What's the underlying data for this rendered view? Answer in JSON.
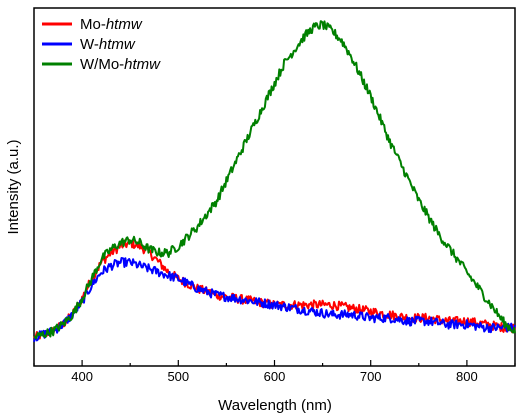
{
  "chart_data": {
    "type": "line",
    "xlabel": "Wavelength (nm)",
    "ylabel": "Intensity (a.u.)",
    "xlim": [
      350,
      850
    ],
    "ylim": [
      0,
      1.0
    ],
    "x_ticks": [
      400,
      500,
      600,
      700,
      800
    ],
    "y_ticks_shown": false,
    "grid": false,
    "legend_position": "top-left",
    "series": [
      {
        "name_prefix": "Mo-",
        "name_suffix": "htmw",
        "color": "#ff0000",
        "x": [
          350,
          360,
          370,
          380,
          390,
          400,
          410,
          420,
          430,
          440,
          450,
          460,
          470,
          480,
          490,
          500,
          520,
          540,
          560,
          580,
          600,
          620,
          640,
          660,
          680,
          700,
          720,
          740,
          760,
          780,
          800,
          820,
          840,
          850
        ],
        "y": [
          0.02,
          0.03,
          0.04,
          0.06,
          0.09,
          0.14,
          0.2,
          0.25,
          0.28,
          0.3,
          0.31,
          0.3,
          0.28,
          0.25,
          0.22,
          0.2,
          0.17,
          0.15,
          0.14,
          0.13,
          0.12,
          0.12,
          0.12,
          0.12,
          0.11,
          0.1,
          0.09,
          0.08,
          0.08,
          0.07,
          0.07,
          0.06,
          0.05,
          0.05
        ]
      },
      {
        "name_prefix": "W-",
        "name_suffix": "htmw",
        "color": "#0000ff",
        "x": [
          350,
          360,
          370,
          380,
          390,
          400,
          410,
          420,
          430,
          440,
          450,
          460,
          470,
          480,
          490,
          500,
          520,
          540,
          560,
          580,
          600,
          620,
          640,
          660,
          680,
          700,
          720,
          740,
          760,
          780,
          800,
          820,
          840,
          850
        ],
        "y": [
          0.02,
          0.03,
          0.04,
          0.06,
          0.09,
          0.13,
          0.18,
          0.22,
          0.24,
          0.25,
          0.25,
          0.24,
          0.23,
          0.22,
          0.21,
          0.2,
          0.17,
          0.15,
          0.14,
          0.13,
          0.12,
          0.11,
          0.1,
          0.09,
          0.09,
          0.08,
          0.08,
          0.07,
          0.07,
          0.06,
          0.06,
          0.05,
          0.05,
          0.05
        ]
      },
      {
        "name_prefix": "W/Mo-",
        "name_suffix": "htmw",
        "color": "#008000",
        "x": [
          350,
          360,
          370,
          380,
          390,
          400,
          410,
          420,
          430,
          440,
          450,
          460,
          470,
          480,
          490,
          500,
          510,
          520,
          530,
          540,
          550,
          560,
          570,
          580,
          590,
          600,
          610,
          620,
          630,
          640,
          650,
          660,
          670,
          680,
          690,
          700,
          710,
          720,
          730,
          740,
          750,
          760,
          770,
          780,
          790,
          800,
          810,
          820,
          830,
          840,
          850
        ],
        "y": [
          0.02,
          0.03,
          0.04,
          0.06,
          0.09,
          0.14,
          0.2,
          0.26,
          0.29,
          0.31,
          0.32,
          0.31,
          0.29,
          0.28,
          0.28,
          0.3,
          0.33,
          0.36,
          0.4,
          0.44,
          0.5,
          0.56,
          0.62,
          0.68,
          0.74,
          0.8,
          0.86,
          0.9,
          0.94,
          0.97,
          0.98,
          0.96,
          0.93,
          0.88,
          0.82,
          0.76,
          0.69,
          0.62,
          0.56,
          0.5,
          0.44,
          0.39,
          0.34,
          0.3,
          0.26,
          0.22,
          0.18,
          0.14,
          0.1,
          0.06,
          0.04
        ]
      }
    ]
  }
}
